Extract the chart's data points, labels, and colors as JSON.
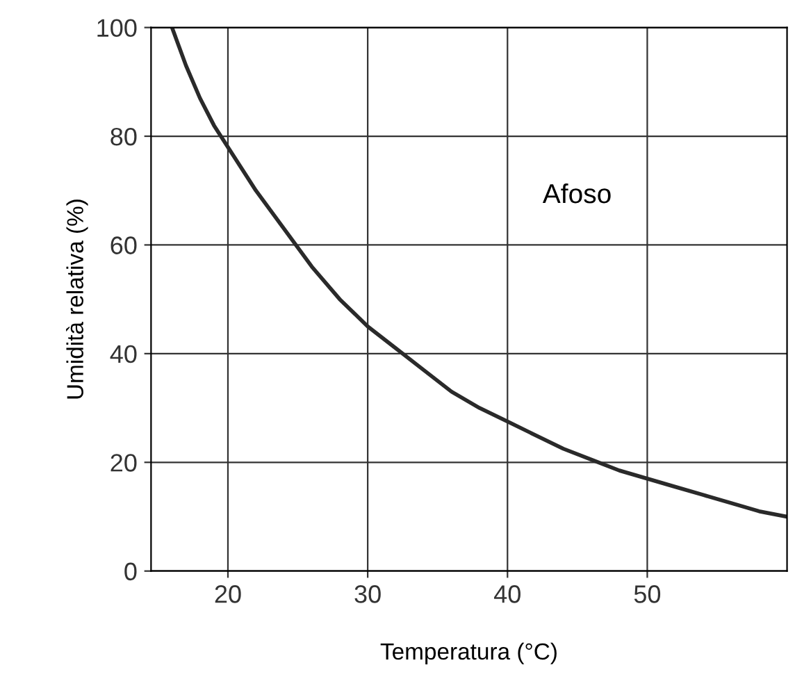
{
  "chart_data": {
    "type": "line",
    "xlabel": "Temperatura (°C)",
    "ylabel": "Umidità relativa (%)",
    "annotations": [
      "Afoso"
    ],
    "series": [
      {
        "color": "#2a2a2a",
        "x": [
          16,
          17,
          18,
          19,
          20,
          22,
          24,
          26,
          28,
          30,
          32,
          34,
          36,
          38,
          40,
          42,
          44,
          46,
          48,
          50,
          52,
          54,
          56,
          58,
          60
        ],
        "values": [
          100,
          93,
          87,
          82,
          78,
          70,
          63,
          56,
          50,
          45,
          41,
          37,
          33,
          30,
          27.5,
          25,
          22.5,
          20.5,
          18.5,
          17,
          15.5,
          14,
          12.5,
          11,
          10
        ]
      }
    ],
    "xlim": [
      14.5,
      60
    ],
    "xticks": [
      20,
      30,
      40,
      50
    ],
    "ylim": [
      0,
      100
    ],
    "yticks": [
      0,
      20,
      40,
      60,
      80,
      100
    ],
    "grid": true,
    "marker": "none",
    "line_style": "solid"
  }
}
